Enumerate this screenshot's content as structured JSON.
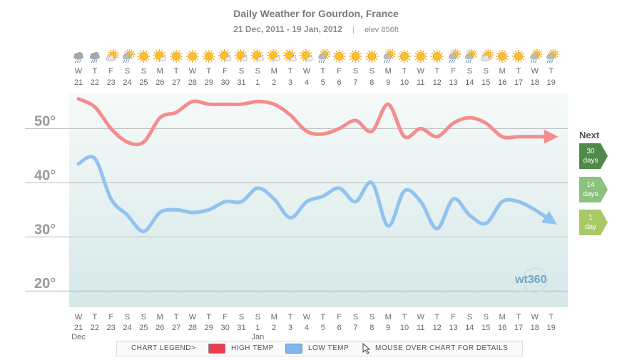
{
  "chart_data": {
    "type": "line",
    "title": "Daily Weather for Gourdon, France",
    "date_range": "21 Dec, 2011 - 19 Jan, 2012",
    "separator": "|",
    "elevation": "elev 856ft",
    "day_letters": [
      "W",
      "T",
      "F",
      "S",
      "S",
      "M",
      "T",
      "W",
      "T",
      "F",
      "S",
      "S",
      "M",
      "T",
      "W",
      "T",
      "F",
      "S",
      "S",
      "M",
      "T",
      "W",
      "T",
      "F",
      "S",
      "S",
      "M",
      "T",
      "W",
      "T"
    ],
    "day_numbers": [
      "21",
      "22",
      "23",
      "24",
      "25",
      "26",
      "27",
      "28",
      "29",
      "30",
      "31",
      "1",
      "2",
      "3",
      "4",
      "5",
      "6",
      "7",
      "8",
      "9",
      "10",
      "11",
      "12",
      "13",
      "14",
      "15",
      "16",
      "17",
      "18",
      "19"
    ],
    "month_labels": [
      {
        "index": 0,
        "text": "Dec"
      },
      {
        "index": 11,
        "text": "Jan"
      }
    ],
    "weather_icons": [
      "cloud-rain",
      "cloud-rain",
      "partly-sunny",
      "sun-cloud-rain",
      "sunny",
      "sunny-cloud",
      "sunny",
      "sunny",
      "sunny",
      "sunny-cloud",
      "sunny-cloud",
      "sunny-cloud",
      "sunny-cloud",
      "sunny-cloud",
      "sunny-cloud",
      "sun-cloud-rain",
      "sunny",
      "sunny",
      "sunny",
      "sun-cloud-rain",
      "sunny",
      "sunny",
      "sunny",
      "sun-cloud-rain",
      "sun-cloud-rain",
      "partly-sunny",
      "sunny",
      "sunny",
      "sun-cloud-rain",
      "sun-cloud-rain"
    ],
    "y_ticks": [
      {
        "value": 50,
        "label": "50°"
      },
      {
        "value": 40,
        "label": "40°"
      },
      {
        "value": 30,
        "label": "30°"
      },
      {
        "value": 20,
        "label": "20°"
      }
    ],
    "ylim": [
      17,
      56.5
    ],
    "series": [
      {
        "name": "HIGH TEMP",
        "color": "#f48d8d",
        "values": [
          55.5,
          54,
          50,
          47.5,
          47.5,
          52,
          53,
          55,
          54.5,
          54.5,
          54.5,
          55,
          54.5,
          52.5,
          49.5,
          49,
          50,
          51.5,
          49.5,
          54.5,
          48.5,
          50,
          48.5,
          51,
          52,
          51,
          48.5,
          48.5,
          48.5,
          48.5
        ]
      },
      {
        "name": "LOW TEMP",
        "color": "#91c3f0",
        "values": [
          43.5,
          44.5,
          37,
          34,
          31,
          34.5,
          35,
          34.5,
          35,
          36.5,
          36.5,
          39,
          37,
          33.5,
          36.5,
          37.5,
          39,
          36.5,
          40,
          32,
          38.5,
          36.5,
          31.5,
          37,
          34,
          32.5,
          36.5,
          36.5,
          35,
          33
        ]
      }
    ]
  },
  "nav": {
    "next_label": "Next",
    "buttons": [
      {
        "line1": "30",
        "line2": "days"
      },
      {
        "line1": "14",
        "line2": "days"
      },
      {
        "line1": "1",
        "line2": "day"
      }
    ]
  },
  "legend": {
    "title": "CHART LEGEND>",
    "high": "HIGH TEMP",
    "low": "LOW TEMP",
    "hint": "MOUSE OVER CHART FOR DETAILS",
    "high_color": "#ee3b4d",
    "low_color": "#7eb7f2"
  },
  "logo": "wt360"
}
